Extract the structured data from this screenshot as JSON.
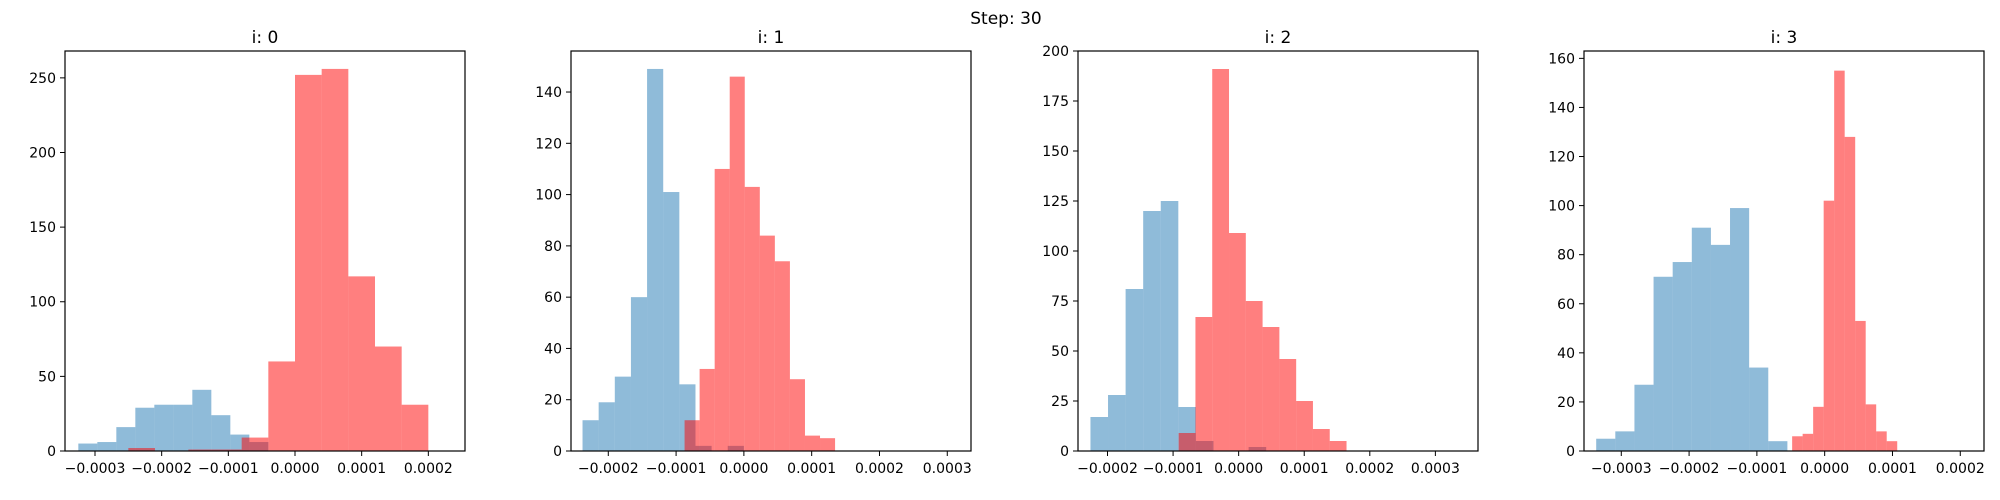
{
  "figure": {
    "suptitle": "Step: 30"
  },
  "colors": {
    "blue": "#1f77b4",
    "red": "#ff0000",
    "alpha": 0.5
  },
  "chart_data": [
    {
      "type": "histogram",
      "title": "i: 0",
      "xlim": [
        -0.000345,
        0.000255
      ],
      "ylim": [
        0,
        268
      ],
      "xticks": [
        -0.0003,
        -0.0002,
        -0.0001,
        0.0,
        0.0001,
        0.0002
      ],
      "xtick_labels": [
        "−0.0003",
        "−0.0002",
        "−0.0001",
        "0.0000",
        "0.0001",
        "0.0002"
      ],
      "yticks": [
        0,
        50,
        100,
        150,
        200,
        250
      ],
      "series": [
        {
          "color": "blue",
          "bin_start": -0.000325,
          "bin_width": 2.85e-05,
          "counts": [
            5,
            6,
            16,
            29,
            31,
            31,
            41,
            24,
            11,
            6
          ]
        },
        {
          "color": "red",
          "bin_start": -0.00016,
          "bin_width": 4e-05,
          "counts": [
            1,
            1,
            9,
            60,
            252,
            256,
            117,
            70,
            31
          ]
        },
        {
          "color": "red",
          "bin_start": -0.00025,
          "bin_width": 4e-05,
          "counts": [
            2
          ]
        }
      ]
    },
    {
      "type": "histogram",
      "title": "i: 1",
      "xlim": [
        -0.000255,
        0.000335
      ],
      "ylim": [
        0,
        156
      ],
      "xticks": [
        -0.0002,
        -0.0001,
        0.0,
        0.0001,
        0.0002,
        0.0003
      ],
      "xtick_labels": [
        "−0.0002",
        "−0.0001",
        "0.0000",
        "0.0001",
        "0.0002",
        "0.0003"
      ],
      "yticks": [
        0,
        20,
        40,
        60,
        80,
        100,
        120,
        140
      ],
      "series": [
        {
          "color": "blue",
          "bin_start": -0.000238,
          "bin_width": 2.38e-05,
          "counts": [
            12,
            19,
            29,
            60,
            149,
            101,
            26,
            2,
            0,
            2
          ]
        },
        {
          "color": "red",
          "bin_start": -8.75e-05,
          "bin_width": 2.22e-05,
          "counts": [
            12,
            32,
            110,
            146,
            103,
            84,
            74,
            28,
            6,
            5
          ]
        }
      ]
    },
    {
      "type": "histogram",
      "title": "i: 2",
      "xlim": [
        -0.000245,
        0.000365
      ],
      "ylim": [
        0,
        200
      ],
      "xticks": [
        -0.0002,
        -0.0001,
        0.0,
        0.0001,
        0.0002,
        0.0003
      ],
      "xtick_labels": [
        "−0.0002",
        "−0.0001",
        "0.0000",
        "0.0001",
        "0.0002",
        "0.0003"
      ],
      "yticks": [
        0,
        25,
        50,
        75,
        100,
        125,
        150,
        175,
        200
      ],
      "series": [
        {
          "color": "blue",
          "bin_start": -0.000226,
          "bin_width": 2.68e-05,
          "counts": [
            17,
            28,
            81,
            120,
            125,
            22,
            5,
            0,
            0,
            2
          ]
        },
        {
          "color": "red",
          "bin_start": -9.15e-05,
          "bin_width": 2.56e-05,
          "counts": [
            9,
            67,
            191,
            109,
            75,
            62,
            46,
            25,
            11,
            5
          ]
        }
      ]
    },
    {
      "type": "histogram",
      "title": "i: 3",
      "xlim": [
        -0.000355,
        0.000235
      ],
      "ylim": [
        0,
        163
      ],
      "xticks": [
        -0.0003,
        -0.0002,
        -0.0001,
        0.0,
        0.0001,
        0.0002
      ],
      "xtick_labels": [
        "−0.0003",
        "−0.0002",
        "−0.0001",
        "0.0000",
        "0.0001",
        "0.0002"
      ],
      "yticks": [
        0,
        20,
        40,
        60,
        80,
        100,
        120,
        140,
        160
      ],
      "series": [
        {
          "color": "blue",
          "bin_start": -0.000337,
          "bin_width": 2.82e-05,
          "counts": [
            5,
            8,
            27,
            71,
            77,
            91,
            84,
            99,
            34,
            4
          ]
        },
        {
          "color": "red",
          "bin_start": -4.8e-05,
          "bin_width": 1.55e-05,
          "counts": [
            6,
            7,
            18,
            102,
            155,
            128,
            53,
            19,
            8,
            4
          ]
        }
      ]
    }
  ]
}
